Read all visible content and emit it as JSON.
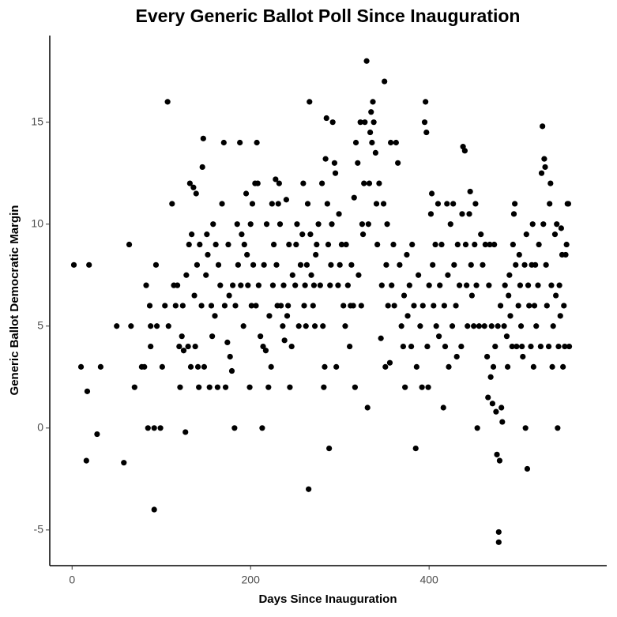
{
  "chart_data": {
    "type": "scatter",
    "title": "Every Generic Ballot Poll Since Inauguration",
    "x_label": "Days Since Inauguration",
    "y_label": "Generic Ballot Democratic Margin",
    "color": "#000000",
    "grid": false,
    "xlim": [
      -25,
      599
    ],
    "ylim": [
      -6.75,
      19.25
    ],
    "xticks": [
      0,
      200,
      400
    ],
    "yticks": [
      -5,
      0,
      5,
      10,
      15
    ],
    "x": [
      2,
      10,
      16,
      17,
      19,
      28,
      32,
      50,
      58,
      64,
      66,
      70,
      78,
      81,
      83,
      85,
      87,
      88,
      88,
      92,
      92,
      94,
      95,
      99,
      101,
      104,
      107,
      108,
      112,
      114,
      116,
      118,
      120,
      121,
      123,
      124,
      125,
      127,
      128,
      130,
      131,
      132,
      133,
      134,
      136,
      137,
      138,
      139,
      140,
      141,
      142,
      143,
      145,
      146,
      147,
      148,
      150,
      151,
      152,
      154,
      156,
      157,
      158,
      160,
      161,
      163,
      164,
      166,
      168,
      170,
      171,
      172,
      174,
      175,
      176,
      177,
      179,
      180,
      182,
      183,
      185,
      186,
      188,
      189,
      190,
      192,
      193,
      195,
      196,
      197,
      199,
      200,
      201,
      202,
      203,
      205,
      206,
      207,
      208,
      209,
      211,
      213,
      214,
      215,
      217,
      218,
      220,
      221,
      223,
      224,
      225,
      226,
      228,
      229,
      230,
      231,
      232,
      233,
      234,
      236,
      237,
      238,
      240,
      241,
      242,
      243,
      244,
      246,
      247,
      250,
      251,
      252,
      254,
      256,
      258,
      259,
      260,
      261,
      262,
      263,
      264,
      265,
      266,
      267,
      268,
      270,
      271,
      272,
      273,
      274,
      276,
      278,
      280,
      281,
      282,
      283,
      284,
      285,
      286,
      287,
      288,
      289,
      290,
      291,
      292,
      294,
      295,
      296,
      298,
      299,
      300,
      302,
      304,
      306,
      307,
      309,
      311,
      312,
      313,
      315,
      316,
      317,
      318,
      320,
      321,
      323,
      324,
      325,
      326,
      327,
      328,
      330,
      331,
      332,
      333,
      334,
      335,
      336,
      337,
      338,
      340,
      341,
      342,
      344,
      346,
      347,
      349,
      350,
      351,
      352,
      353,
      354,
      356,
      357,
      358,
      360,
      361,
      363,
      365,
      367,
      369,
      371,
      372,
      373,
      375,
      376,
      378,
      380,
      381,
      383,
      385,
      386,
      388,
      390,
      392,
      393,
      395,
      396,
      397,
      398,
      399,
      400,
      402,
      403,
      404,
      405,
      407,
      408,
      410,
      411,
      412,
      414,
      416,
      417,
      418,
      420,
      421,
      422,
      424,
      426,
      427,
      428,
      430,
      431,
      432,
      434,
      436,
      437,
      438,
      440,
      441,
      442,
      443,
      445,
      446,
      447,
      448,
      450,
      451,
      452,
      453,
      454,
      456,
      458,
      460,
      462,
      463,
      465,
      466,
      467,
      468,
      469,
      470,
      471,
      472,
      473,
      474,
      475,
      476,
      477,
      478,
      478,
      479,
      480,
      481,
      482,
      484,
      485,
      487,
      488,
      489,
      490,
      491,
      493,
      494,
      495,
      496,
      497,
      498,
      500,
      501,
      502,
      503,
      504,
      505,
      507,
      508,
      509,
      510,
      511,
      512,
      514,
      515,
      516,
      517,
      518,
      519,
      520,
      522,
      523,
      525,
      526,
      527,
      528,
      529,
      530,
      531,
      532,
      534,
      535,
      536,
      537,
      538,
      539,
      541,
      542,
      543,
      544,
      545,
      546,
      547,
      548,
      549,
      550,
      551,
      552,
      553,
      554,
      555,
      556,
      557
    ],
    "values": [
      8,
      3,
      -1.6,
      1.8,
      8,
      -0.3,
      3,
      5,
      -1.7,
      9,
      5,
      2,
      3,
      3,
      7,
      0,
      6,
      5,
      4,
      0,
      -4,
      8,
      5,
      0,
      3,
      6,
      16,
      5,
      11,
      7,
      6,
      7,
      4,
      2,
      4.5,
      6,
      3.8,
      -0.2,
      7.5,
      4,
      9,
      12,
      3,
      9.5,
      11.8,
      6.5,
      4,
      11.5,
      8,
      3,
      2,
      9,
      6,
      12.8,
      14.2,
      3,
      7.5,
      9.5,
      8.5,
      2,
      6,
      4.5,
      10,
      5.5,
      9,
      2,
      8,
      7,
      11,
      14,
      6,
      2,
      4.2,
      9,
      6.5,
      3.5,
      2.8,
      7,
      0,
      6,
      10,
      8,
      14,
      7,
      9.5,
      5,
      9,
      11.5,
      8.5,
      7,
      2,
      10,
      6,
      11,
      8,
      12,
      6,
      14,
      12,
      7,
      4.5,
      0,
      4,
      8,
      3.8,
      10,
      2,
      5.5,
      3,
      11,
      7,
      9,
      12.2,
      8,
      6,
      11,
      12,
      10,
      6,
      5,
      7,
      4.3,
      11.2,
      5.5,
      6,
      9,
      2,
      4,
      7.5,
      7,
      9,
      10,
      5,
      8,
      9.5,
      12,
      6,
      7,
      5,
      8,
      11,
      -3,
      16,
      9.5,
      7.5,
      6,
      7,
      5,
      8.5,
      9,
      10,
      7,
      12,
      5,
      2,
      3,
      13.2,
      15.2,
      11,
      9,
      -1,
      7,
      8,
      10,
      15,
      13,
      12.5,
      3,
      7,
      10.5,
      8,
      9,
      6,
      5,
      9,
      7,
      4,
      6,
      8,
      6,
      11.3,
      2,
      14,
      13,
      7.5,
      15,
      6,
      10,
      9.5,
      12,
      15,
      18,
      1,
      10,
      12,
      14.5,
      15.5,
      14,
      16,
      15,
      13.5,
      11,
      9,
      12,
      4.4,
      7,
      11,
      17,
      3,
      8,
      10,
      6,
      3.2,
      14,
      7,
      9,
      6,
      14,
      13,
      8,
      5,
      4,
      6.5,
      2,
      8.5,
      5.5,
      7,
      4,
      9,
      6,
      -1,
      3,
      7.5,
      5,
      2,
      6,
      15,
      16,
      14.5,
      4,
      2,
      7,
      10.5,
      11.5,
      8,
      6,
      9,
      5,
      11,
      4.5,
      7,
      9,
      1,
      6,
      4,
      11,
      7.5,
      3,
      10,
      5,
      11,
      8,
      6,
      3.5,
      9,
      7,
      4,
      10.5,
      13.8,
      13.6,
      9,
      7,
      5,
      10.5,
      11.6,
      8,
      6.5,
      5,
      9,
      11,
      7,
      0,
      5,
      9.5,
      8,
      5,
      9,
      3.5,
      1.5,
      7,
      9,
      2.5,
      5,
      1.2,
      3,
      9,
      4,
      0.8,
      -1.3,
      5,
      -5.1,
      -5.6,
      -1.6,
      6,
      1,
      0.3,
      5,
      7,
      4.5,
      3,
      6.5,
      7.5,
      5.5,
      4,
      9,
      10.5,
      11,
      8,
      4,
      6,
      8.5,
      7,
      5,
      4,
      3.5,
      8,
      0,
      9.5,
      -2,
      7,
      6,
      4,
      8,
      10,
      3,
      6,
      8,
      5,
      7,
      9,
      4,
      12.5,
      14.8,
      10,
      13.2,
      12.8,
      8,
      6,
      4,
      11,
      12,
      7,
      3,
      5,
      9.5,
      6.5,
      10,
      0,
      4,
      7,
      5.5,
      9.8,
      8.5,
      3,
      6,
      4,
      8.5,
      9,
      11,
      11,
      4
    ]
  }
}
